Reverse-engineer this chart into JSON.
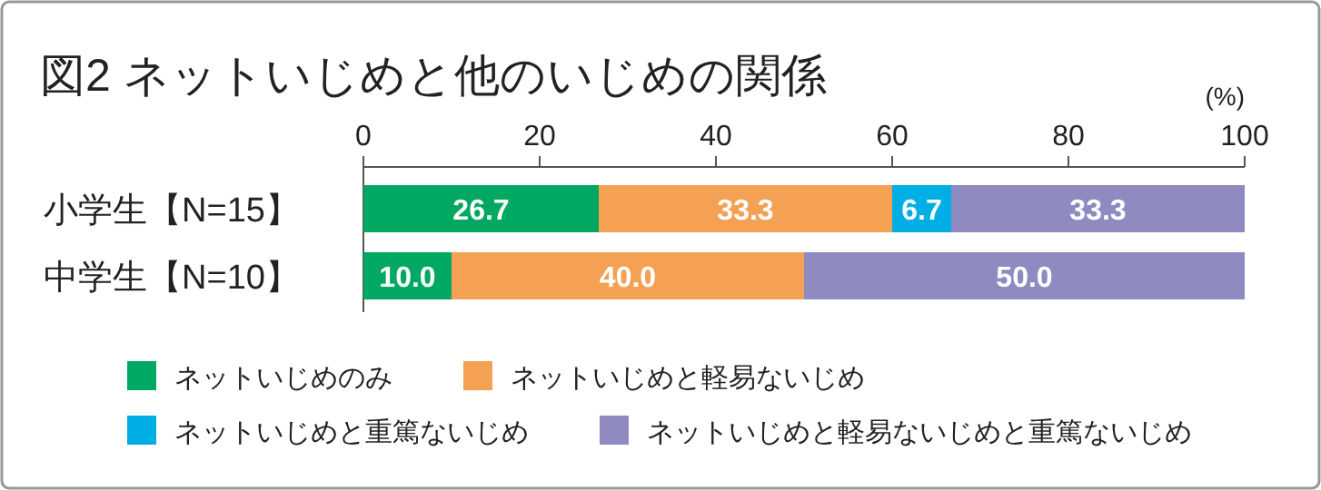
{
  "chart_data": {
    "type": "bar",
    "orientation": "horizontal",
    "stacked": true,
    "title": "図2 ネットいじめと他のいじめの関係",
    "xlabel": "(%)",
    "categories": [
      "小学生【N=15】",
      "中学生【N=10】"
    ],
    "xlim": [
      0,
      100
    ],
    "xticks": [
      0,
      20,
      40,
      60,
      80,
      100
    ],
    "legend": "bottom",
    "grid": false,
    "series": [
      {
        "name": "ネットいじめのみ",
        "color": "#00a862",
        "values": [
          26.7,
          10.0
        ],
        "value_labels": [
          "26.7",
          "10.0"
        ]
      },
      {
        "name": "ネットいじめと軽易ないじめ",
        "color": "#f4a154",
        "values": [
          33.3,
          40.0
        ],
        "value_labels": [
          "33.3",
          "40.0"
        ]
      },
      {
        "name": "ネットいじめと重篤ないじめ",
        "color": "#00aee6",
        "values": [
          6.7,
          0
        ],
        "value_labels": [
          "6.7",
          null
        ]
      },
      {
        "name": "ネットいじめと軽易ないじめと重篤ないじめ",
        "color": "#8f8ac0",
        "values": [
          33.3,
          50.0
        ],
        "value_labels": [
          "33.3",
          "50.0"
        ]
      }
    ]
  }
}
